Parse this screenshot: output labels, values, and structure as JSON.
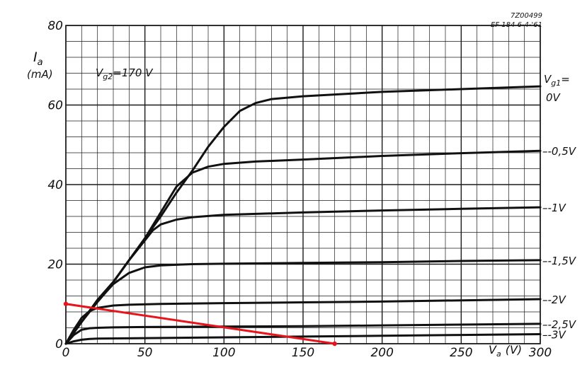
{
  "chart_data": {
    "type": "line",
    "ref_id": "7Z00499",
    "ref_date": "EF 184  6-4-'61",
    "ylabel_symbol": "I",
    "ylabel_sub": "a",
    "ylabel_unit": "(mA)",
    "xlabel_symbol": "V",
    "xlabel_sub": "a",
    "xlabel_unit": "(V)",
    "annotation_main": "V",
    "annotation_sub": "g2",
    "annotation_value": "=170 V",
    "legend_header_main": "V",
    "legend_header_sub": "g1",
    "legend_header_suffix": "=",
    "xlim": [
      0,
      300
    ],
    "ylim": [
      0,
      80
    ],
    "x_ticks": [
      0,
      50,
      100,
      150,
      200,
      250,
      300
    ],
    "x_tick_labels": [
      "0",
      "50",
      "100",
      "150",
      "200",
      "250",
      "300"
    ],
    "y_ticks": [
      0,
      20,
      40,
      60,
      80
    ],
    "y_tick_labels": [
      "0",
      "20",
      "40",
      "60",
      "80"
    ],
    "grid": true,
    "series": [
      {
        "name": "0V",
        "x": [
          0,
          10,
          20,
          30,
          40,
          50,
          60,
          70,
          80,
          90,
          100,
          110,
          120,
          130,
          150,
          200,
          250,
          300
        ],
        "y": [
          0,
          5.5,
          11,
          15.5,
          21,
          26.5,
          32,
          38,
          43.5,
          49.5,
          54.5,
          58.5,
          60.5,
          61.5,
          62.2,
          63.3,
          64,
          64.7
        ]
      },
      {
        "name": "-0,5V",
        "x": [
          0,
          10,
          20,
          30,
          40,
          50,
          60,
          70,
          80,
          90,
          100,
          120,
          150,
          200,
          250,
          300
        ],
        "y": [
          0,
          5.5,
          11,
          15.5,
          21,
          26.5,
          33,
          39.5,
          43,
          44.5,
          45.2,
          45.8,
          46.3,
          47.2,
          47.9,
          48.5
        ]
      },
      {
        "name": "-1V",
        "x": [
          0,
          10,
          20,
          30,
          40,
          50,
          55,
          60,
          70,
          80,
          100,
          150,
          200,
          250,
          300
        ],
        "y": [
          0,
          5.5,
          11,
          15.5,
          21,
          26,
          28.5,
          30,
          31.2,
          31.8,
          32.4,
          33,
          33.5,
          33.9,
          34.3
        ]
      },
      {
        "name": "-1,5V",
        "x": [
          0,
          10,
          20,
          25,
          30,
          40,
          50,
          60,
          80,
          100,
          150,
          200,
          250,
          300
        ],
        "y": [
          0,
          5.5,
          10.5,
          12.8,
          15,
          17.8,
          19.2,
          19.7,
          20,
          20.1,
          20.3,
          20.5,
          20.8,
          21
        ]
      },
      {
        "name": "-2V",
        "x": [
          0,
          5,
          10,
          15,
          20,
          30,
          40,
          60,
          100,
          150,
          200,
          250,
          300
        ],
        "y": [
          0,
          3.5,
          6.5,
          8.2,
          9,
          9.6,
          9.8,
          10,
          10.2,
          10.4,
          10.6,
          10.9,
          11.2
        ]
      },
      {
        "name": "-2,5V",
        "x": [
          0,
          5,
          10,
          15,
          20,
          30,
          50,
          100,
          150,
          200,
          250,
          300
        ],
        "y": [
          0,
          2.2,
          3.5,
          3.9,
          4,
          4.1,
          4.2,
          4.3,
          4.4,
          4.6,
          4.8,
          5
        ]
      },
      {
        "name": "-3V",
        "x": [
          0,
          5,
          10,
          15,
          20,
          50,
          100,
          150,
          200,
          250,
          300
        ],
        "y": [
          0,
          0.6,
          1,
          1.2,
          1.3,
          1.4,
          1.6,
          1.8,
          2,
          2.2,
          2.4
        ]
      }
    ],
    "load_line": {
      "x": [
        0,
        170
      ],
      "y": [
        10,
        0
      ],
      "color": "#e8141c"
    },
    "line_color": "#111111",
    "grid_color": "#1a1a1a"
  }
}
